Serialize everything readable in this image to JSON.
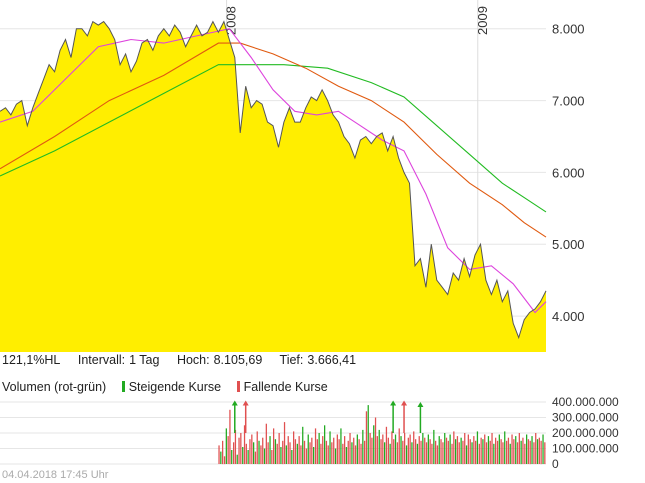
{
  "info": {
    "ratio": "121,1%HL",
    "interval_label": "Intervall:",
    "interval_value": "1 Tag",
    "high_label": "Hoch:",
    "high_value": "8.105,69",
    "low_label": "Tief:",
    "low_value": "3.666,41"
  },
  "volume_legend": {
    "title": "Volumen (rot-grün)",
    "rising_label": "Steigende Kurse",
    "falling_label": "Fallende Kurse",
    "rising_color": "#22aa22",
    "falling_color": "#e05050"
  },
  "timestamp": "04.04.2018 17:45 Uhr",
  "colors": {
    "price_fill": "#ffee00",
    "price_line": "#555555",
    "ma_short": "#dd44dd",
    "ma_mid": "#e05a10",
    "ma_long": "#22bb22"
  },
  "chart_data": [
    {
      "type": "area",
      "x_labels": [
        "2008",
        "2009"
      ],
      "yticks": [
        "4.000",
        "5.000",
        "6.000",
        "7.000",
        "8.000"
      ],
      "ylim": [
        3500,
        8400
      ],
      "xlim": [
        0,
        100
      ],
      "grid": true,
      "price": [
        [
          0,
          6850
        ],
        [
          1,
          6900
        ],
        [
          2,
          6800
        ],
        [
          3,
          6950
        ],
        [
          4,
          7000
        ],
        [
          5,
          6650
        ],
        [
          6,
          6900
        ],
        [
          7,
          7100
        ],
        [
          8,
          7300
        ],
        [
          9,
          7500
        ],
        [
          10,
          7400
        ],
        [
          11,
          7700
        ],
        [
          12,
          7850
        ],
        [
          13,
          7600
        ],
        [
          14,
          8000
        ],
        [
          15,
          8000
        ],
        [
          16,
          7900
        ],
        [
          17,
          8100
        ],
        [
          18,
          8050
        ],
        [
          19,
          8100
        ],
        [
          20,
          8000
        ],
        [
          21,
          7850
        ],
        [
          22,
          7500
        ],
        [
          23,
          7650
        ],
        [
          24,
          7400
        ],
        [
          25,
          7550
        ],
        [
          26,
          7800
        ],
        [
          27,
          7850
        ],
        [
          28,
          7700
        ],
        [
          29,
          7900
        ],
        [
          30,
          8000
        ],
        [
          31,
          7900
        ],
        [
          32,
          8050
        ],
        [
          33,
          7950
        ],
        [
          34,
          7750
        ],
        [
          35,
          7900
        ],
        [
          36,
          8050
        ],
        [
          37,
          7900
        ],
        [
          38,
          7950
        ],
        [
          39,
          8100
        ],
        [
          40,
          7950
        ],
        [
          41,
          8100
        ],
        [
          42,
          7850
        ],
        [
          43,
          7600
        ],
        [
          44,
          6550
        ],
        [
          45,
          7200
        ],
        [
          46,
          6900
        ],
        [
          47,
          7000
        ],
        [
          48,
          6950
        ],
        [
          49,
          6700
        ],
        [
          50,
          6650
        ],
        [
          51,
          6350
        ],
        [
          52,
          6700
        ],
        [
          53,
          6900
        ],
        [
          54,
          6700
        ],
        [
          55,
          6700
        ],
        [
          56,
          6900
        ],
        [
          57,
          7050
        ],
        [
          58,
          7000
        ],
        [
          59,
          7150
        ],
        [
          60,
          7000
        ],
        [
          61,
          6800
        ],
        [
          62,
          6700
        ],
        [
          63,
          6500
        ],
        [
          64,
          6400
        ],
        [
          65,
          6200
        ],
        [
          66,
          6450
        ],
        [
          67,
          6500
        ],
        [
          68,
          6400
        ],
        [
          69,
          6500
        ],
        [
          70,
          6550
        ],
        [
          71,
          6300
        ],
        [
          72,
          6500
        ],
        [
          73,
          6200
        ],
        [
          74,
          6000
        ],
        [
          75,
          5850
        ],
        [
          76,
          4700
        ],
        [
          77,
          4800
        ],
        [
          78,
          4400
        ],
        [
          79,
          5000
        ],
        [
          80,
          4500
        ],
        [
          81,
          4400
        ],
        [
          82,
          4300
        ],
        [
          83,
          4600
        ],
        [
          84,
          4500
        ],
        [
          85,
          4800
        ],
        [
          86,
          4550
        ],
        [
          87,
          4850
        ],
        [
          88,
          5000
        ],
        [
          89,
          4500
        ],
        [
          90,
          4300
        ],
        [
          91,
          4500
        ],
        [
          92,
          4200
        ],
        [
          93,
          4350
        ],
        [
          94,
          3900
        ],
        [
          95,
          3700
        ],
        [
          96,
          3950
        ],
        [
          97,
          4050
        ],
        [
          98,
          4100
        ],
        [
          99,
          4200
        ],
        [
          100,
          4350
        ]
      ],
      "ma_short": [
        [
          0,
          6700
        ],
        [
          6,
          6850
        ],
        [
          12,
          7300
        ],
        [
          18,
          7750
        ],
        [
          24,
          7850
        ],
        [
          30,
          7800
        ],
        [
          36,
          7900
        ],
        [
          42,
          8000
        ],
        [
          46,
          7600
        ],
        [
          50,
          7150
        ],
        [
          54,
          6850
        ],
        [
          58,
          6800
        ],
        [
          62,
          6850
        ],
        [
          66,
          6650
        ],
        [
          70,
          6450
        ],
        [
          74,
          6300
        ],
        [
          78,
          5700
        ],
        [
          82,
          4950
        ],
        [
          86,
          4650
        ],
        [
          90,
          4700
        ],
        [
          94,
          4450
        ],
        [
          98,
          4050
        ],
        [
          100,
          4200
        ]
      ],
      "ma_mid": [
        [
          0,
          6050
        ],
        [
          10,
          6500
        ],
        [
          20,
          7000
        ],
        [
          30,
          7350
        ],
        [
          40,
          7800
        ],
        [
          44,
          7800
        ],
        [
          50,
          7650
        ],
        [
          56,
          7450
        ],
        [
          62,
          7200
        ],
        [
          68,
          7000
        ],
        [
          74,
          6700
        ],
        [
          80,
          6250
        ],
        [
          86,
          5850
        ],
        [
          92,
          5550
        ],
        [
          96,
          5300
        ],
        [
          100,
          5100
        ]
      ],
      "ma_long": [
        [
          0,
          5950
        ],
        [
          10,
          6300
        ],
        [
          20,
          6700
        ],
        [
          30,
          7100
        ],
        [
          40,
          7500
        ],
        [
          44,
          7500
        ],
        [
          52,
          7500
        ],
        [
          60,
          7450
        ],
        [
          68,
          7250
        ],
        [
          74,
          7050
        ],
        [
          80,
          6650
        ],
        [
          86,
          6250
        ],
        [
          92,
          5850
        ],
        [
          96,
          5650
        ],
        [
          100,
          5450
        ]
      ]
    },
    {
      "type": "bar",
      "name": "Volumen",
      "yticks": [
        "0",
        "100.000.000",
        "200.000.000",
        "300.000.000",
        "400.000.000"
      ],
      "ylim": [
        0,
        400000000
      ],
      "start_x": 40,
      "values": [
        120,
        80,
        150,
        50,
        230,
        180,
        350,
        90,
        140,
        220,
        60,
        170,
        200,
        110,
        250,
        130,
        90,
        160,
        190,
        140,
        80,
        210,
        150,
        120,
        170,
        100,
        260,
        140,
        180,
        90,
        230,
        160,
        130,
        200,
        110,
        150,
        270,
        120,
        180,
        140,
        90,
        210,
        160,
        130,
        180,
        120,
        240,
        150,
        100,
        190,
        140,
        170,
        110,
        230,
        160,
        200,
        130,
        180,
        250,
        150,
        120,
        210,
        140,
        170,
        100,
        190,
        160,
        230,
        130,
        180,
        110,
        150,
        200,
        140,
        170,
        120,
        190,
        160,
        130,
        220,
        150,
        340,
        380,
        200,
        170,
        250,
        300,
        180,
        220,
        160,
        190,
        140,
        240,
        170,
        130,
        210,
        160,
        190,
        140,
        230,
        180,
        150,
        200,
        120,
        170,
        190,
        140,
        210,
        160,
        130,
        180,
        150,
        200,
        170,
        140,
        190,
        160,
        130,
        220,
        150,
        120,
        180,
        160,
        140,
        200,
        170,
        150,
        190,
        130,
        210,
        160,
        180,
        140,
        170,
        150,
        200,
        120,
        190,
        160,
        140,
        180,
        150,
        210,
        130,
        170,
        160,
        190,
        140,
        180,
        150,
        200,
        130,
        170,
        150,
        190,
        160,
        140,
        210,
        150,
        170,
        130,
        190,
        160,
        180,
        140,
        200,
        150,
        170,
        130,
        190,
        160,
        150,
        180,
        140,
        200,
        160,
        170,
        150,
        190,
        140
      ],
      "peaks_up": [
        [
          43,
          410
        ],
        [
          72,
          410
        ],
        [
          77,
          400
        ]
      ],
      "peaks_down": [
        [
          45,
          410
        ],
        [
          74,
          410
        ]
      ]
    }
  ]
}
